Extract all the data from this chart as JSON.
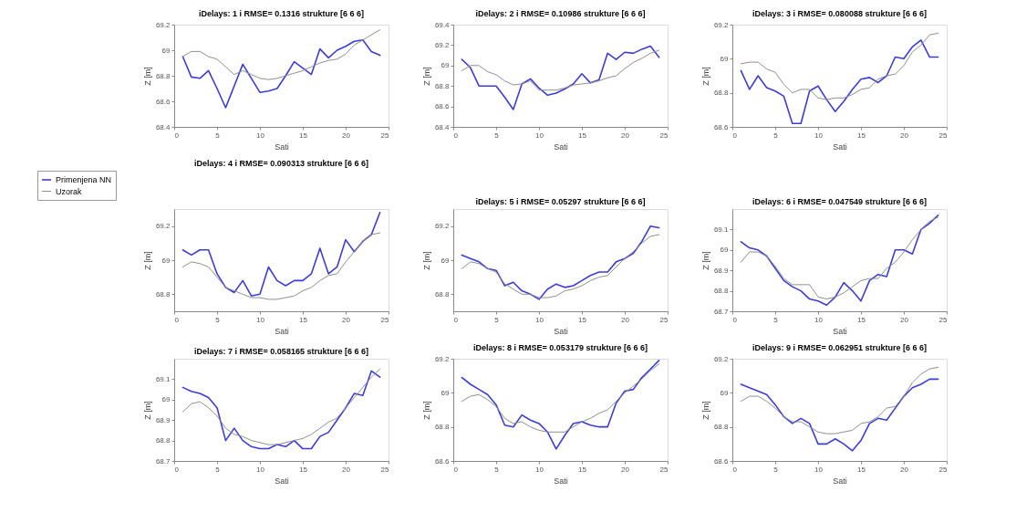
{
  "chart_data": [
    {
      "type": "line",
      "title": "iDelays: 1 i RMSE= 0.1316 strukture [6 6 6]",
      "xlabel": "Sati",
      "ylabel": "Z [m]",
      "x": [
        1,
        2,
        3,
        4,
        5,
        6,
        7,
        8,
        9,
        10,
        11,
        12,
        13,
        14,
        15,
        16,
        17,
        18,
        19,
        20,
        21,
        22,
        23,
        24
      ],
      "xlim": [
        0,
        25
      ],
      "xticks": [
        0,
        5,
        10,
        15,
        20,
        25
      ],
      "ylim": [
        68.4,
        69.2
      ],
      "yticks": [
        68.4,
        68.6,
        68.8,
        69,
        69.2
      ],
      "series": [
        {
          "color": "#3d3dd6",
          "values": [
            68.95,
            68.79,
            68.78,
            68.84,
            68.7,
            68.55,
            68.72,
            68.89,
            68.78,
            68.67,
            68.68,
            68.7,
            68.8,
            68.91,
            68.86,
            68.81,
            69.01,
            68.94,
            69.0,
            69.03,
            69.07,
            69.08,
            68.99,
            68.96
          ]
        },
        {
          "color": "#8c918c",
          "values": [
            68.95,
            68.99,
            68.99,
            68.95,
            68.93,
            68.87,
            68.81,
            68.84,
            68.81,
            68.78,
            68.77,
            68.78,
            68.8,
            68.82,
            68.84,
            68.87,
            68.9,
            68.92,
            68.93,
            68.97,
            69.04,
            69.08,
            69.12,
            69.16
          ]
        }
      ]
    },
    {
      "type": "line",
      "title": "iDelays: 2 i RMSE= 0.10986 strukture [6 6 6]",
      "xlabel": "Sati",
      "ylabel": "Z [m]",
      "x": [
        1,
        2,
        3,
        4,
        5,
        6,
        7,
        8,
        9,
        10,
        11,
        12,
        13,
        14,
        15,
        16,
        17,
        18,
        19,
        20,
        21,
        22,
        23,
        24
      ],
      "xlim": [
        0,
        25
      ],
      "xticks": [
        0,
        5,
        10,
        15,
        20,
        25
      ],
      "ylim": [
        68.4,
        69.4
      ],
      "yticks": [
        68.4,
        68.6,
        68.8,
        69,
        69.2,
        69.4
      ],
      "series": [
        {
          "color": "#3d3dd6",
          "values": [
            69.06,
            68.98,
            68.8,
            68.8,
            68.8,
            68.69,
            68.57,
            68.82,
            68.87,
            68.78,
            68.71,
            68.73,
            68.77,
            68.82,
            68.92,
            68.83,
            68.86,
            69.12,
            69.06,
            69.13,
            69.12,
            69.16,
            69.19,
            69.08
          ]
        },
        {
          "color": "#8c918c",
          "values": [
            68.95,
            69.0,
            69.0,
            68.94,
            68.91,
            68.85,
            68.81,
            68.82,
            68.85,
            68.76,
            68.76,
            68.76,
            68.78,
            68.81,
            68.82,
            68.83,
            68.85,
            68.88,
            68.9,
            68.97,
            69.03,
            69.07,
            69.12,
            69.15
          ]
        }
      ]
    },
    {
      "type": "line",
      "title": "iDelays: 3 i RMSE= 0.080088 strukture [6 6 6]",
      "xlabel": "Sati",
      "ylabel": "Z [m]",
      "x": [
        1,
        2,
        3,
        4,
        5,
        6,
        7,
        8,
        9,
        10,
        11,
        12,
        13,
        14,
        15,
        16,
        17,
        18,
        19,
        20,
        21,
        22,
        23,
        24
      ],
      "xlim": [
        0,
        25
      ],
      "xticks": [
        0,
        5,
        10,
        15,
        20,
        25
      ],
      "ylim": [
        68.6,
        69.2
      ],
      "yticks": [
        68.6,
        68.8,
        69,
        69.2
      ],
      "series": [
        {
          "color": "#3d3dd6",
          "values": [
            68.93,
            68.82,
            68.9,
            68.83,
            68.81,
            68.78,
            68.62,
            68.62,
            68.81,
            68.84,
            68.76,
            68.69,
            68.75,
            68.82,
            68.88,
            68.89,
            68.86,
            68.9,
            69.01,
            69.0,
            69.07,
            69.11,
            69.01,
            69.01
          ]
        },
        {
          "color": "#8c918c",
          "values": [
            68.97,
            68.98,
            68.98,
            68.94,
            68.92,
            68.85,
            68.8,
            68.82,
            68.82,
            68.77,
            68.76,
            68.77,
            68.77,
            68.79,
            68.82,
            68.83,
            68.88,
            68.9,
            68.91,
            68.96,
            69.04,
            69.08,
            69.14,
            69.15
          ]
        }
      ]
    },
    {
      "type": "line",
      "title": "iDelays: 4 i RMSE= 0.090313 strukture [6 6 6]",
      "xlabel": "Sati",
      "ylabel": "Z [m]",
      "legend": "left",
      "x": [
        1,
        2,
        3,
        4,
        5,
        6,
        7,
        8,
        9,
        10,
        11,
        12,
        13,
        14,
        15,
        16,
        17,
        18,
        19,
        20,
        21,
        22,
        23,
        24
      ],
      "xlim": [
        0,
        25
      ],
      "xticks": [
        0,
        5,
        10,
        15,
        20,
        25
      ],
      "ylim": [
        68.7,
        69.3
      ],
      "yticks": [
        68.8,
        69,
        69.2
      ],
      "series": [
        {
          "name": "Primenjena NN",
          "color": "#3d3dd6",
          "values": [
            69.06,
            69.03,
            69.06,
            69.06,
            68.92,
            68.84,
            68.81,
            68.88,
            68.79,
            68.8,
            68.96,
            68.88,
            68.85,
            68.88,
            68.88,
            68.92,
            69.07,
            68.92,
            68.96,
            69.12,
            69.05,
            69.11,
            69.15,
            69.28
          ]
        },
        {
          "name": "Uzorak",
          "color": "#8c918c",
          "values": [
            68.96,
            68.99,
            68.98,
            68.96,
            68.9,
            68.84,
            68.82,
            68.8,
            68.78,
            68.78,
            68.77,
            68.77,
            68.78,
            68.79,
            68.82,
            68.84,
            68.88,
            68.91,
            68.92,
            68.99,
            69.05,
            69.11,
            69.15,
            69.16
          ]
        }
      ]
    },
    {
      "type": "line",
      "title": "iDelays: 5 i RMSE= 0.05297 strukture [6 6 6]",
      "xlabel": "Sati",
      "ylabel": "Z [m]",
      "x": [
        1,
        2,
        3,
        4,
        5,
        6,
        7,
        8,
        9,
        10,
        11,
        12,
        13,
        14,
        15,
        16,
        17,
        18,
        19,
        20,
        21,
        22,
        23,
        24
      ],
      "xlim": [
        0,
        25
      ],
      "xticks": [
        0,
        5,
        10,
        15,
        20,
        25
      ],
      "ylim": [
        68.7,
        69.3
      ],
      "yticks": [
        68.8,
        69,
        69.2
      ],
      "series": [
        {
          "color": "#3d3dd6",
          "values": [
            69.03,
            69.01,
            68.99,
            68.95,
            68.94,
            68.85,
            68.87,
            68.82,
            68.8,
            68.77,
            68.83,
            68.86,
            68.84,
            68.85,
            68.88,
            68.91,
            68.93,
            68.93,
            68.99,
            69.01,
            69.04,
            69.11,
            69.2,
            69.19
          ]
        },
        {
          "color": "#8c918c",
          "values": [
            68.95,
            68.99,
            68.98,
            68.95,
            68.93,
            68.86,
            68.83,
            68.8,
            68.8,
            68.78,
            68.78,
            68.79,
            68.82,
            68.83,
            68.85,
            68.88,
            68.9,
            68.91,
            68.96,
            69.01,
            69.05,
            69.1,
            69.14,
            69.15
          ]
        }
      ]
    },
    {
      "type": "line",
      "title": "iDelays: 6 i RMSE= 0.047549 strukture [6 6 6]",
      "xlabel": "Sati",
      "ylabel": "Z [m]",
      "x": [
        1,
        2,
        3,
        4,
        5,
        6,
        7,
        8,
        9,
        10,
        11,
        12,
        13,
        14,
        15,
        16,
        17,
        18,
        19,
        20,
        21,
        22,
        23,
        24
      ],
      "xlim": [
        0,
        25
      ],
      "xticks": [
        0,
        5,
        10,
        15,
        20,
        25
      ],
      "ylim": [
        68.7,
        69.2
      ],
      "yticks": [
        68.7,
        68.8,
        68.9,
        69,
        69.1
      ],
      "series": [
        {
          "color": "#3d3dd6",
          "values": [
            69.04,
            69.01,
            69.0,
            68.97,
            68.91,
            68.85,
            68.82,
            68.8,
            68.76,
            68.75,
            68.73,
            68.77,
            68.84,
            68.8,
            68.75,
            68.85,
            68.88,
            68.87,
            69.0,
            69.0,
            68.98,
            69.1,
            69.13,
            69.17
          ]
        },
        {
          "color": "#8c918c",
          "values": [
            68.94,
            68.99,
            68.99,
            68.97,
            68.92,
            68.86,
            68.83,
            68.83,
            68.83,
            68.77,
            68.76,
            68.77,
            68.79,
            68.82,
            68.85,
            68.86,
            68.86,
            68.91,
            68.94,
            68.99,
            69.05,
            69.1,
            69.14,
            69.16
          ]
        }
      ]
    },
    {
      "type": "line",
      "title": "iDelays: 7 i RMSE= 0.058165 strukture [6 6 6]",
      "xlabel": "Sati",
      "ylabel": "Z [m]",
      "x": [
        1,
        2,
        3,
        4,
        5,
        6,
        7,
        8,
        9,
        10,
        11,
        12,
        13,
        14,
        15,
        16,
        17,
        18,
        19,
        20,
        21,
        22,
        23,
        24
      ],
      "xlim": [
        0,
        25
      ],
      "xticks": [
        0,
        5,
        10,
        15,
        20,
        25
      ],
      "ylim": [
        68.7,
        69.2
      ],
      "yticks": [
        68.7,
        68.8,
        68.9,
        69,
        69.1
      ],
      "series": [
        {
          "color": "#3d3dd6",
          "values": [
            69.06,
            69.04,
            69.03,
            69.01,
            68.96,
            68.8,
            68.86,
            68.8,
            68.77,
            68.76,
            68.76,
            68.78,
            68.77,
            68.8,
            68.76,
            68.76,
            68.82,
            68.84,
            68.9,
            68.96,
            69.03,
            69.02,
            69.14,
            69.11
          ]
        },
        {
          "color": "#8c918c",
          "values": [
            68.94,
            68.98,
            68.99,
            68.96,
            68.92,
            68.86,
            68.83,
            68.82,
            68.8,
            68.79,
            68.78,
            68.78,
            68.79,
            68.8,
            68.81,
            68.83,
            68.86,
            68.89,
            68.91,
            68.96,
            69.01,
            69.06,
            69.11,
            69.15
          ]
        }
      ]
    },
    {
      "type": "line",
      "title": "iDelays: 8 i RMSE= 0.053179 strukture [6 6 6]",
      "xlabel": "Sati",
      "ylabel": "Z [m]",
      "x": [
        1,
        2,
        3,
        4,
        5,
        6,
        7,
        8,
        9,
        10,
        11,
        12,
        13,
        14,
        15,
        16,
        17,
        18,
        19,
        20,
        21,
        22,
        23,
        24
      ],
      "xlim": [
        0,
        25
      ],
      "xticks": [
        0,
        5,
        10,
        15,
        20,
        25
      ],
      "ylim": [
        68.6,
        69.2
      ],
      "yticks": [
        68.6,
        68.8,
        69,
        69.2
      ],
      "series": [
        {
          "color": "#3d3dd6",
          "values": [
            69.09,
            69.05,
            69.02,
            68.99,
            68.93,
            68.81,
            68.8,
            68.87,
            68.84,
            68.82,
            68.77,
            68.67,
            68.75,
            68.82,
            68.83,
            68.81,
            68.8,
            68.8,
            68.94,
            69.01,
            69.02,
            69.09,
            69.14,
            69.19
          ]
        },
        {
          "color": "#8c918c",
          "values": [
            68.95,
            68.98,
            68.99,
            68.96,
            68.92,
            68.85,
            68.82,
            68.83,
            68.8,
            68.78,
            68.77,
            68.77,
            68.77,
            68.8,
            68.83,
            68.85,
            68.88,
            68.9,
            68.95,
            69.0,
            69.04,
            69.08,
            69.13,
            69.17
          ]
        }
      ]
    },
    {
      "type": "line",
      "title": "iDelays: 9 i RMSE= 0.062951 strukture [6 6 6]",
      "xlabel": "Sati",
      "ylabel": "Z [m]",
      "x": [
        1,
        2,
        3,
        4,
        5,
        6,
        7,
        8,
        9,
        10,
        11,
        12,
        13,
        14,
        15,
        16,
        17,
        18,
        19,
        20,
        21,
        22,
        23,
        24
      ],
      "xlim": [
        0,
        25
      ],
      "xticks": [
        0,
        5,
        10,
        15,
        20,
        25
      ],
      "ylim": [
        68.6,
        69.2
      ],
      "yticks": [
        68.6,
        68.8,
        69,
        69.2
      ],
      "series": [
        {
          "color": "#3d3dd6",
          "values": [
            69.05,
            69.03,
            69.01,
            68.99,
            68.93,
            68.86,
            68.82,
            68.85,
            68.82,
            68.7,
            68.7,
            68.73,
            68.7,
            68.66,
            68.72,
            68.82,
            68.85,
            68.84,
            68.91,
            68.98,
            69.03,
            69.05,
            69.08,
            69.08
          ]
        },
        {
          "color": "#8c918c",
          "values": [
            68.95,
            68.98,
            68.98,
            68.95,
            68.91,
            68.86,
            68.83,
            68.83,
            68.8,
            68.77,
            68.76,
            68.76,
            68.77,
            68.78,
            68.82,
            68.83,
            68.86,
            68.91,
            68.92,
            68.98,
            69.06,
            69.11,
            69.14,
            69.15
          ]
        }
      ]
    }
  ]
}
